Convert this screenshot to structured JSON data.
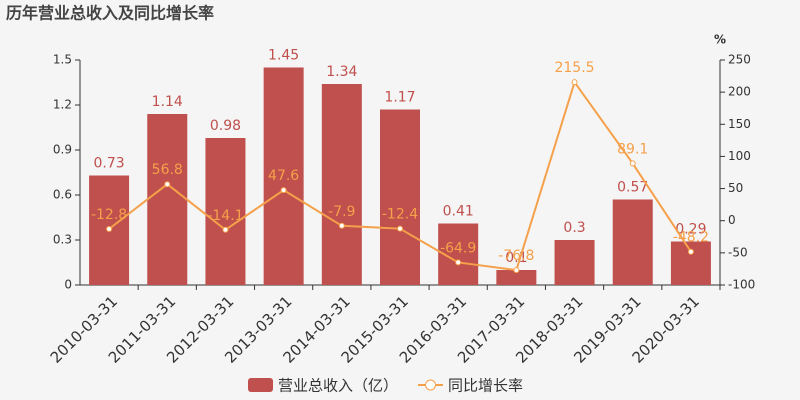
{
  "chart_data": {
    "type": "bar-line",
    "title": "历年营业总收入及同比增长率",
    "categories": [
      "2010-03-31",
      "2011-03-31",
      "2012-03-31",
      "2013-03-31",
      "2014-03-31",
      "2015-03-31",
      "2016-03-31",
      "2017-03-31",
      "2018-03-31",
      "2019-03-31",
      "2020-03-31"
    ],
    "series": [
      {
        "name": "营业总收入（亿）",
        "type": "bar",
        "color": "#c0504d",
        "values": [
          0.73,
          1.14,
          0.98,
          1.45,
          1.34,
          1.17,
          0.41,
          0.1,
          0.3,
          0.57,
          0.29
        ]
      },
      {
        "name": "同比增长率",
        "type": "line",
        "axis": "y2",
        "color": "#f5a04a",
        "values": [
          -12.8,
          56.8,
          -14.1,
          47.6,
          -7.9,
          -12.4,
          -64.9,
          -76.8,
          215.5,
          89.1,
          -48.2
        ]
      }
    ],
    "ylim": [
      0,
      1.5
    ],
    "yticks": [
      0,
      0.3,
      0.6,
      0.9,
      1.2,
      1.5
    ],
    "y2lim": [
      -100,
      250
    ],
    "y2ticks": [
      -100,
      -50,
      0,
      50,
      100,
      150,
      200,
      250
    ],
    "y2label": "%",
    "grid": false
  }
}
